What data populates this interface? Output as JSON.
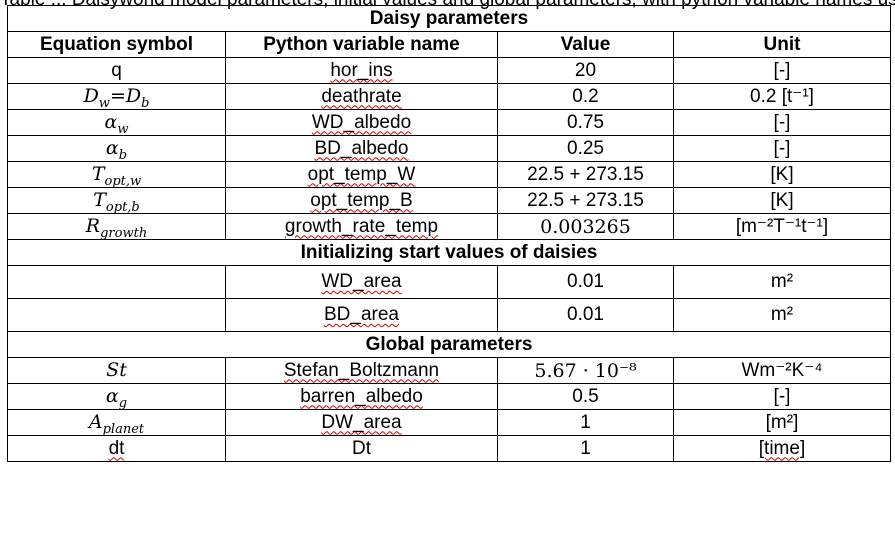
{
  "cutoff_caption": "Table ... Daisyworld model parameters, initial values and global parameters, with python variable names used in the python code ...",
  "sections": {
    "daisy": "Daisy parameters",
    "init": "Initializing start values of daisies",
    "global": "Global parameters"
  },
  "headers": {
    "symbol": "Equation symbol",
    "pyvar": "Python variable name",
    "value": "Value",
    "unit": "Unit"
  },
  "daisy_rows": [
    {
      "pyvar": "hor_ins",
      "value": "20",
      "unit": "[-]"
    },
    {
      "pyvar": "deathrate",
      "value": "0.2",
      "unit": "0.2 [t⁻¹]"
    },
    {
      "pyvar": "WD_albedo",
      "value": "0.75",
      "unit": "[-]"
    },
    {
      "pyvar": "BD_albedo",
      "value": "0.25",
      "unit": "[-]"
    },
    {
      "pyvar": "opt_temp_W",
      "value": "22.5 + 273.15",
      "unit": "[K]"
    },
    {
      "pyvar": "opt_temp_B",
      "value": "22.5 + 273.15",
      "unit": "[K]"
    },
    {
      "pyvar": "growth_rate_temp",
      "value": "0.003265",
      "unit": "[m⁻²T⁻¹t⁻¹]"
    }
  ],
  "init_rows": [
    {
      "pyvar": "WD_area",
      "value": "0.01",
      "unit": "m²"
    },
    {
      "pyvar": "BD_area",
      "value": "0.01",
      "unit": "m²"
    }
  ],
  "global_rows": [
    {
      "pyvar": "Stefan_Boltzmann",
      "value": "5.67 · 10⁻⁸",
      "unit": "Wm⁻²K⁻⁴"
    },
    {
      "pyvar": "barren_albedo",
      "value": "0.5",
      "unit": "[-]"
    },
    {
      "pyvar": "DW_area",
      "value": "1",
      "unit": "[m²]"
    },
    {
      "pyvar": "Dt",
      "value": "1",
      "unit": "[time]"
    }
  ],
  "symbols": {
    "q": "q",
    "Dw": "D",
    "Dw_sub": "w",
    "Db": "D",
    "Db_sub": "b",
    "alpha_w": "α",
    "alpha_w_sub": "w",
    "alpha_b": "α",
    "alpha_b_sub": "b",
    "Topt_w": "T",
    "Topt_w_sub": "opt,w",
    "Topt_b": "T",
    "Topt_b_sub": "opt,b",
    "R": "R",
    "R_sub": "growth",
    "St": "St",
    "alpha_g": "α",
    "alpha_g_sub": "g",
    "A": "A",
    "A_sub": "planet",
    "dt": "dt"
  }
}
